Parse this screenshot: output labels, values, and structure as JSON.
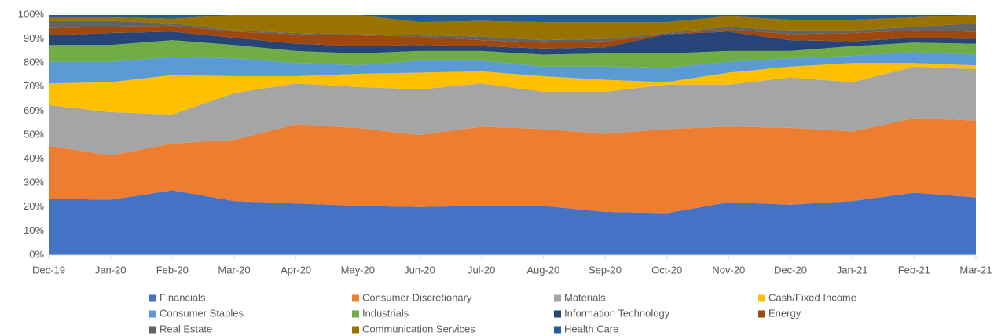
{
  "chart_data": {
    "type": "area_stacked_100",
    "categories": [
      "Dec-19",
      "Jan-20",
      "Feb-20",
      "Mar-20",
      "Apr-20",
      "May-20",
      "Jun-20",
      "Jul-20",
      "Aug-20",
      "Sep-20",
      "Oct-20",
      "Nov-20",
      "Dec-20",
      "Jan-21",
      "Feb-21",
      "Mar-21"
    ],
    "series": [
      {
        "name": "Financials",
        "color": "#4472c4",
        "values": [
          23.5,
          23,
          27,
          22.5,
          21.5,
          20.5,
          20,
          20.5,
          20.5,
          18,
          17.5,
          22,
          21,
          22.5,
          26,
          24
        ]
      },
      {
        "name": "Consumer Discretionary",
        "color": "#ed7d31",
        "values": [
          22,
          18.5,
          19.5,
          25.5,
          33,
          32.5,
          30,
          33,
          32,
          32.5,
          35,
          31.5,
          32,
          29,
          31,
          32
        ]
      },
      {
        "name": "Materials",
        "color": "#a5a5a5",
        "values": [
          17,
          18,
          12,
          19.5,
          17,
          17,
          19,
          18,
          15.5,
          17.5,
          18.5,
          17.5,
          21,
          20.5,
          21.5,
          21.5
        ]
      },
      {
        "name": "Cash/Fixed Income",
        "color": "#ffc000",
        "values": [
          9,
          12.5,
          16.5,
          7,
          3,
          5.5,
          7,
          5,
          6.5,
          5,
          1,
          5,
          4.5,
          8,
          1.5,
          1.5
        ]
      },
      {
        "name": "Consumer Staples",
        "color": "#5b9bd5",
        "values": [
          9,
          8.5,
          7.5,
          7.5,
          5.5,
          3.5,
          5,
          4.5,
          4,
          5.5,
          6,
          4.5,
          3.5,
          3,
          4.5,
          4.5
        ]
      },
      {
        "name": "Industrials",
        "color": "#70ad47",
        "values": [
          7,
          7,
          7,
          5.5,
          5,
          5,
          4,
          4,
          5,
          5.5,
          6,
          4.5,
          3,
          4,
          4,
          4.5
        ]
      },
      {
        "name": "Information Technology",
        "color": "#264478",
        "values": [
          4,
          5,
          3.5,
          3,
          3,
          3,
          2.5,
          2,
          2.5,
          2.5,
          8,
          8,
          4.5,
          2,
          2,
          2
        ]
      },
      {
        "name": "Energy",
        "color": "#9e480e",
        "values": [
          3,
          2.5,
          2.5,
          2.5,
          4,
          4.5,
          3.5,
          2.5,
          2.5,
          2.5,
          0,
          1,
          2.5,
          3.5,
          3,
          3
        ]
      },
      {
        "name": "Real Estate",
        "color": "#636363",
        "values": [
          3,
          2.5,
          1,
          0.5,
          0.5,
          0.5,
          0.5,
          1.5,
          1,
          1,
          0.5,
          1,
          1.5,
          1,
          1.5,
          3.5
        ]
      },
      {
        "name": "Communication Services",
        "color": "#997300",
        "values": [
          1.5,
          1.5,
          2,
          6.5,
          7.5,
          8,
          5.5,
          6.5,
          7.5,
          7,
          4.5,
          4.5,
          4.5,
          4.5,
          4,
          3.5
        ]
      },
      {
        "name": "Health Care",
        "color": "#255e91",
        "values": [
          1,
          1,
          1.5,
          0,
          0,
          0,
          3,
          2.5,
          3,
          3,
          3,
          0.5,
          2,
          2,
          1,
          0
        ]
      }
    ],
    "ylim": [
      0,
      100
    ],
    "yticks": [
      {
        "value": 0,
        "label": "0%"
      },
      {
        "value": 10,
        "label": "10%"
      },
      {
        "value": 20,
        "label": "20%"
      },
      {
        "value": 30,
        "label": "30%"
      },
      {
        "value": 40,
        "label": "40%"
      },
      {
        "value": 50,
        "label": "50%"
      },
      {
        "value": 60,
        "label": "60%"
      },
      {
        "value": 70,
        "label": "70%"
      },
      {
        "value": 80,
        "label": "80%"
      },
      {
        "value": 90,
        "label": "90%"
      },
      {
        "value": 100,
        "label": "100%"
      }
    ],
    "grid": false,
    "legend": "bottom"
  }
}
